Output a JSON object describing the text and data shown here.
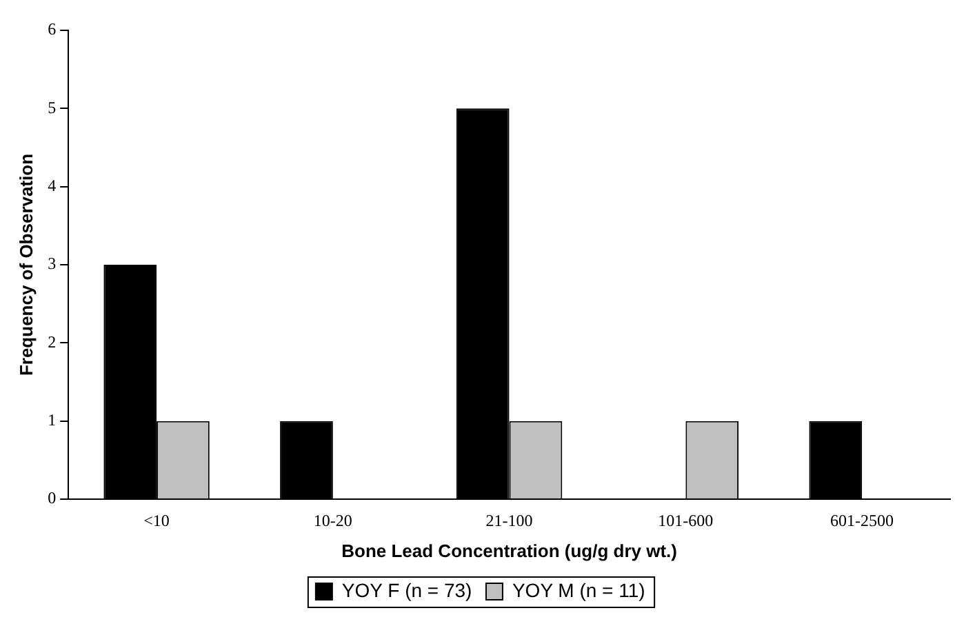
{
  "chart_data": {
    "type": "bar",
    "xlabel": "Bone Lead Concentration (ug/g dry wt.)",
    "ylabel": "Frequency of Observation",
    "categories": [
      "<10",
      "10-20",
      "21-100",
      "101-600",
      "601-2500"
    ],
    "series": [
      {
        "name": "YOY F (n = 73)",
        "color": "#000000",
        "values": [
          3,
          1,
          5,
          null,
          1
        ]
      },
      {
        "name": "YOY M (n = 11)",
        "color": "#c0c0c0",
        "values": [
          1,
          null,
          1,
          1,
          null
        ]
      }
    ],
    "ylim": [
      0,
      6
    ],
    "yticks": [
      0,
      1,
      2,
      3,
      4,
      5,
      6
    ],
    "grid": false,
    "legend": "bottom"
  }
}
